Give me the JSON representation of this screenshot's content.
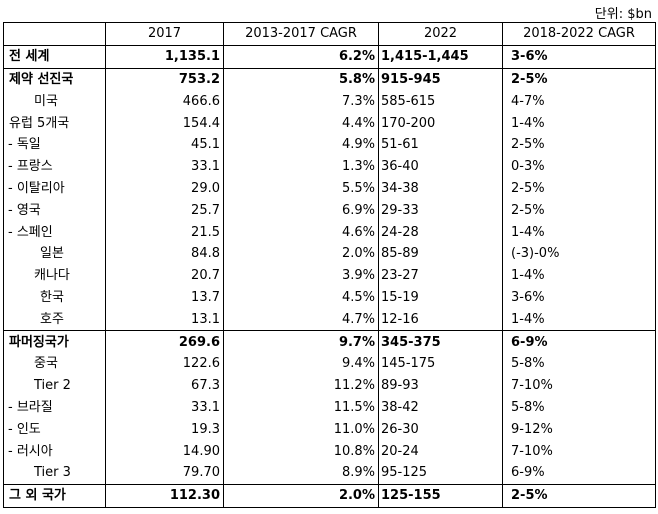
{
  "unit_label": "단위: $bn",
  "headers": [
    "",
    "2017",
    "2013-2017 CAGR",
    "2022",
    "2018-2022 CAGR"
  ],
  "rows": [
    {
      "name": "전 세계",
      "y2017": "1,135.1",
      "cagr13_17": "6.2%",
      "y2022": "1,415-1,445",
      "cagr18_22": "3-6%",
      "level": "group"
    },
    {
      "name": "제약 선진국",
      "y2017": "753.2",
      "cagr13_17": "5.8%",
      "y2022": "915-945",
      "cagr18_22": "2-5%",
      "level": "group"
    },
    {
      "name": "미국",
      "y2017": "466.6",
      "cagr13_17": "7.3%",
      "y2022": "585-615",
      "cagr18_22": "4-7%",
      "level": "ind1"
    },
    {
      "name": "유럽 5개국",
      "y2017": "154.4",
      "cagr13_17": "4.4%",
      "y2022": "170-200",
      "cagr18_22": "1-4%",
      "level": "ind0"
    },
    {
      "name": "- 독일",
      "y2017": "45.1",
      "cagr13_17": "4.9%",
      "y2022": "51-61",
      "cagr18_22": "2-5%",
      "level": "dash"
    },
    {
      "name": "- 프랑스",
      "y2017": "33.1",
      "cagr13_17": "1.3%",
      "y2022": "36-40",
      "cagr18_22": "0-3%",
      "level": "dash"
    },
    {
      "name": "- 이탈리아",
      "y2017": "29.0",
      "cagr13_17": "5.5%",
      "y2022": "34-38",
      "cagr18_22": "2-5%",
      "level": "dash"
    },
    {
      "name": "- 영국",
      "y2017": "25.7",
      "cagr13_17": "6.9%",
      "y2022": "29-33",
      "cagr18_22": "2-5%",
      "level": "dash"
    },
    {
      "name": "- 스페인",
      "y2017": "21.5",
      "cagr13_17": "4.6%",
      "y2022": "24-28",
      "cagr18_22": "1-4%",
      "level": "dash"
    },
    {
      "name": "일본",
      "y2017": "84.8",
      "cagr13_17": "2.0%",
      "y2022": "85-89",
      "cagr18_22": "(-3)-0%",
      "level": "ind2"
    },
    {
      "name": "캐나다",
      "y2017": "20.7",
      "cagr13_17": "3.9%",
      "y2022": "23-27",
      "cagr18_22": "1-4%",
      "level": "ind1"
    },
    {
      "name": "한국",
      "y2017": "13.7",
      "cagr13_17": "4.5%",
      "y2022": "15-19",
      "cagr18_22": "3-6%",
      "level": "ind2"
    },
    {
      "name": "호주",
      "y2017": "13.1",
      "cagr13_17": "4.7%",
      "y2022": "12-16",
      "cagr18_22": "1-4%",
      "level": "ind2"
    },
    {
      "name": "파머징국가",
      "y2017": "269.6",
      "cagr13_17": "9.7%",
      "y2022": "345-375",
      "cagr18_22": "6-9%",
      "level": "group"
    },
    {
      "name": "중국",
      "y2017": "122.6",
      "cagr13_17": "9.4%",
      "y2022": "145-175",
      "cagr18_22": "5-8%",
      "level": "ind1"
    },
    {
      "name": "Tier 2",
      "y2017": "67.3",
      "cagr13_17": "11.2%",
      "y2022": "89-93",
      "cagr18_22": "7-10%",
      "level": "ind1"
    },
    {
      "name": "- 브라질",
      "y2017": "33.1",
      "cagr13_17": "11.5%",
      "y2022": "38-42",
      "cagr18_22": "5-8%",
      "level": "dash"
    },
    {
      "name": "- 인도",
      "y2017": "19.3",
      "cagr13_17": "11.0%",
      "y2022": "26-30",
      "cagr18_22": "9-12%",
      "level": "dash"
    },
    {
      "name": "- 러시아",
      "y2017": "14.90",
      "cagr13_17": "10.8%",
      "y2022": "20-24",
      "cagr18_22": "7-10%",
      "level": "dash"
    },
    {
      "name": "Tier 3",
      "y2017": "79.70",
      "cagr13_17": "8.9%",
      "y2022": "95-125",
      "cagr18_22": "6-9%",
      "level": "ind1"
    },
    {
      "name": "그 외 국가",
      "y2017": "112.30",
      "cagr13_17": "2.0%",
      "y2022": "125-155",
      "cagr18_22": "2-5%",
      "level": "group"
    }
  ]
}
